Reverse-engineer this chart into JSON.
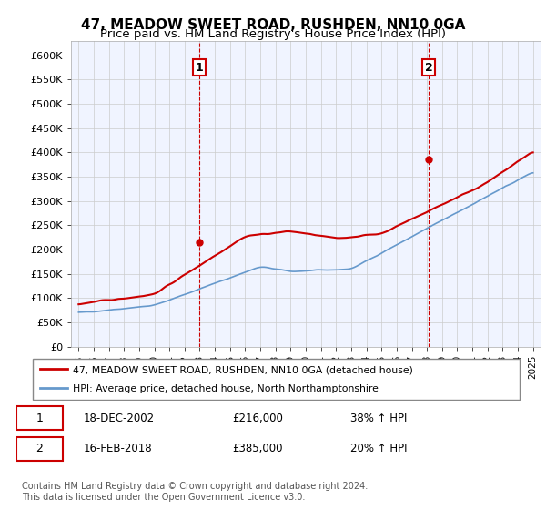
{
  "title": "47, MEADOW SWEET ROAD, RUSHDEN, NN10 0GA",
  "subtitle": "Price paid vs. HM Land Registry's House Price Index (HPI)",
  "title_fontsize": 11,
  "subtitle_fontsize": 9.5,
  "legend_line1": "47, MEADOW SWEET ROAD, RUSHDEN, NN10 0GA (detached house)",
  "legend_line2": "HPI: Average price, detached house, North Northamptonshire",
  "line_color_red": "#cc0000",
  "line_color_blue": "#6699cc",
  "dashed_color": "#cc0000",
  "annotation_box_color": "#cc0000",
  "background_color": "#ffffff",
  "grid_color": "#cccccc",
  "ylim": [
    0,
    630000
  ],
  "yticks": [
    0,
    50000,
    100000,
    150000,
    200000,
    250000,
    300000,
    350000,
    400000,
    450000,
    500000,
    550000,
    600000
  ],
  "ytick_labels": [
    "£0",
    "£50K",
    "£100K",
    "£150K",
    "£200K",
    "£250K",
    "£300K",
    "£350K",
    "£400K",
    "£450K",
    "£500K",
    "£550K",
    "£600K"
  ],
  "sale1_x": 2002.97,
  "sale1_y": 216000,
  "sale1_label": "1",
  "sale2_x": 2018.12,
  "sale2_y": 385000,
  "sale2_label": "2",
  "table_row1": [
    "1",
    "18-DEC-2002",
    "£216,000",
    "38% ↑ HPI"
  ],
  "table_row2": [
    "2",
    "16-FEB-2018",
    "£385,000",
    "20% ↑ HPI"
  ],
  "footer": "Contains HM Land Registry data © Crown copyright and database right 2024.\nThis data is licensed under the Open Government Licence v3.0.",
  "xmin": 1994.5,
  "xmax": 2025.5
}
